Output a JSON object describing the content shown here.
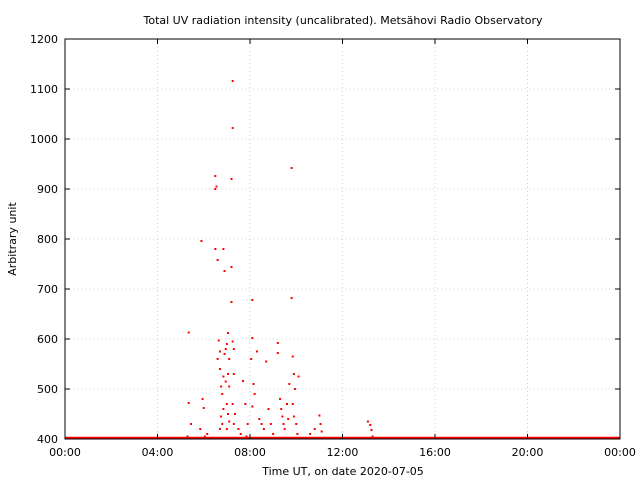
{
  "chart_data": {
    "type": "scatter",
    "title": "Total UV radiation intensity (uncalibrated). Metsähovi Radio Observatory",
    "xlabel": "Time UT, on date 2020-07-05",
    "ylabel": "Arbitrary unit",
    "xlim": [
      0,
      24
    ],
    "ylim": [
      400,
      1200
    ],
    "x_ticks": [
      {
        "value": 0,
        "label": "00:00"
      },
      {
        "value": 4,
        "label": "04:00"
      },
      {
        "value": 8,
        "label": "08:00"
      },
      {
        "value": 12,
        "label": "12:00"
      },
      {
        "value": 16,
        "label": "16:00"
      },
      {
        "value": 20,
        "label": "20:00"
      },
      {
        "value": 24,
        "label": "00:00"
      }
    ],
    "y_ticks": [
      {
        "value": 400,
        "label": "400"
      },
      {
        "value": 500,
        "label": "500"
      },
      {
        "value": 600,
        "label": "600"
      },
      {
        "value": 700,
        "label": "700"
      },
      {
        "value": 800,
        "label": "800"
      },
      {
        "value": 900,
        "label": "900"
      },
      {
        "value": 1000,
        "label": "1000"
      },
      {
        "value": 1100,
        "label": "1100"
      },
      {
        "value": 1200,
        "label": "1200"
      }
    ],
    "grid": true,
    "marker_color": "#ff0000",
    "baseline": {
      "value": 400,
      "from": 0,
      "to": 24
    },
    "points": [
      [
        5.35,
        613
      ],
      [
        5.35,
        472
      ],
      [
        5.45,
        430
      ],
      [
        5.3,
        405
      ],
      [
        5.5,
        402
      ],
      [
        5.9,
        796
      ],
      [
        5.95,
        480
      ],
      [
        6.0,
        462
      ],
      [
        5.85,
        420
      ],
      [
        6.05,
        405
      ],
      [
        6.15,
        410
      ],
      [
        6.5,
        926
      ],
      [
        6.55,
        905
      ],
      [
        6.5,
        900
      ],
      [
        6.5,
        780
      ],
      [
        6.6,
        758
      ],
      [
        6.65,
        597
      ],
      [
        6.7,
        575
      ],
      [
        6.6,
        560
      ],
      [
        6.7,
        540
      ],
      [
        6.75,
        505
      ],
      [
        6.85,
        780
      ],
      [
        6.9,
        736
      ],
      [
        6.95,
        580
      ],
      [
        6.9,
        570
      ],
      [
        6.85,
        525
      ],
      [
        6.95,
        515
      ],
      [
        6.8,
        490
      ],
      [
        6.85,
        460
      ],
      [
        6.75,
        445
      ],
      [
        6.8,
        430
      ],
      [
        6.7,
        420
      ],
      [
        7.05,
        612
      ],
      [
        7.0,
        590
      ],
      [
        7.1,
        560
      ],
      [
        7.05,
        530
      ],
      [
        7.1,
        505
      ],
      [
        7.0,
        470
      ],
      [
        7.05,
        450
      ],
      [
        7.1,
        435
      ],
      [
        7.0,
        420
      ],
      [
        7.25,
        1116
      ],
      [
        7.25,
        1022
      ],
      [
        7.2,
        920
      ],
      [
        7.2,
        744
      ],
      [
        7.2,
        674
      ],
      [
        7.25,
        595
      ],
      [
        7.3,
        580
      ],
      [
        7.3,
        530
      ],
      [
        7.25,
        470
      ],
      [
        7.35,
        450
      ],
      [
        7.3,
        430
      ],
      [
        7.5,
        420
      ],
      [
        7.6,
        410
      ],
      [
        7.7,
        516
      ],
      [
        7.8,
        470
      ],
      [
        7.9,
        430
      ],
      [
        7.85,
        405
      ],
      [
        8.1,
        678
      ],
      [
        8.1,
        602
      ],
      [
        8.05,
        560
      ],
      [
        8.15,
        510
      ],
      [
        8.2,
        490
      ],
      [
        8.1,
        465
      ],
      [
        8.3,
        575
      ],
      [
        8.4,
        440
      ],
      [
        8.5,
        430
      ],
      [
        8.6,
        420
      ],
      [
        8.7,
        555
      ],
      [
        8.8,
        460
      ],
      [
        8.9,
        430
      ],
      [
        9.0,
        410
      ],
      [
        9.2,
        592
      ],
      [
        9.2,
        572
      ],
      [
        9.3,
        480
      ],
      [
        9.35,
        460
      ],
      [
        9.4,
        445
      ],
      [
        9.45,
        430
      ],
      [
        9.5,
        420
      ],
      [
        9.6,
        470
      ],
      [
        9.65,
        440
      ],
      [
        9.7,
        510
      ],
      [
        9.8,
        942
      ],
      [
        9.8,
        682
      ],
      [
        9.85,
        565
      ],
      [
        9.9,
        530
      ],
      [
        9.95,
        500
      ],
      [
        9.85,
        470
      ],
      [
        9.9,
        445
      ],
      [
        10.0,
        430
      ],
      [
        10.1,
        525
      ],
      [
        10.05,
        410
      ],
      [
        10.6,
        410
      ],
      [
        10.8,
        420
      ],
      [
        11.0,
        447
      ],
      [
        11.05,
        430
      ],
      [
        11.1,
        415
      ],
      [
        13.1,
        435
      ],
      [
        13.2,
        428
      ],
      [
        13.25,
        418
      ],
      [
        13.3,
        405
      ]
    ]
  }
}
